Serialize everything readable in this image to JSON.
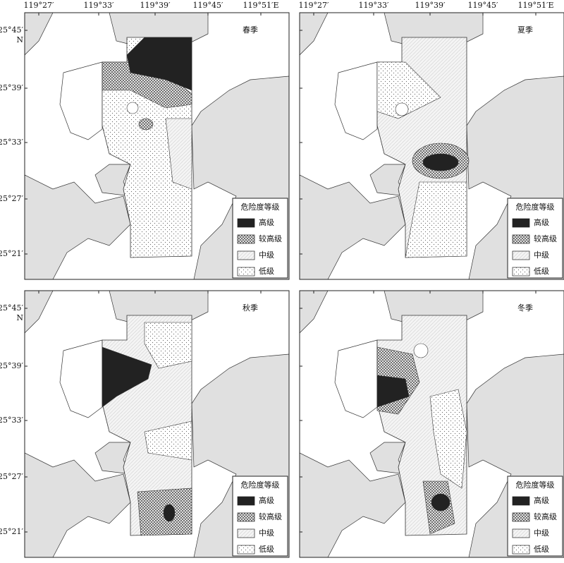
{
  "longitude_labels": [
    "119°27′",
    "119°33′",
    "119°39′",
    "119°45′",
    "119°51′E"
  ],
  "latitude_labels": [
    "25°45′",
    "25°39′",
    "25°33′",
    "25°27′",
    "25°21′"
  ],
  "north_label": "N",
  "legend": {
    "title": "危险度等级",
    "items": [
      "高级",
      "较高级",
      "中级",
      "低级"
    ]
  },
  "panels": [
    {
      "title": "春季"
    },
    {
      "title": "夏季"
    },
    {
      "title": "秋季"
    },
    {
      "title": "冬季"
    }
  ]
}
